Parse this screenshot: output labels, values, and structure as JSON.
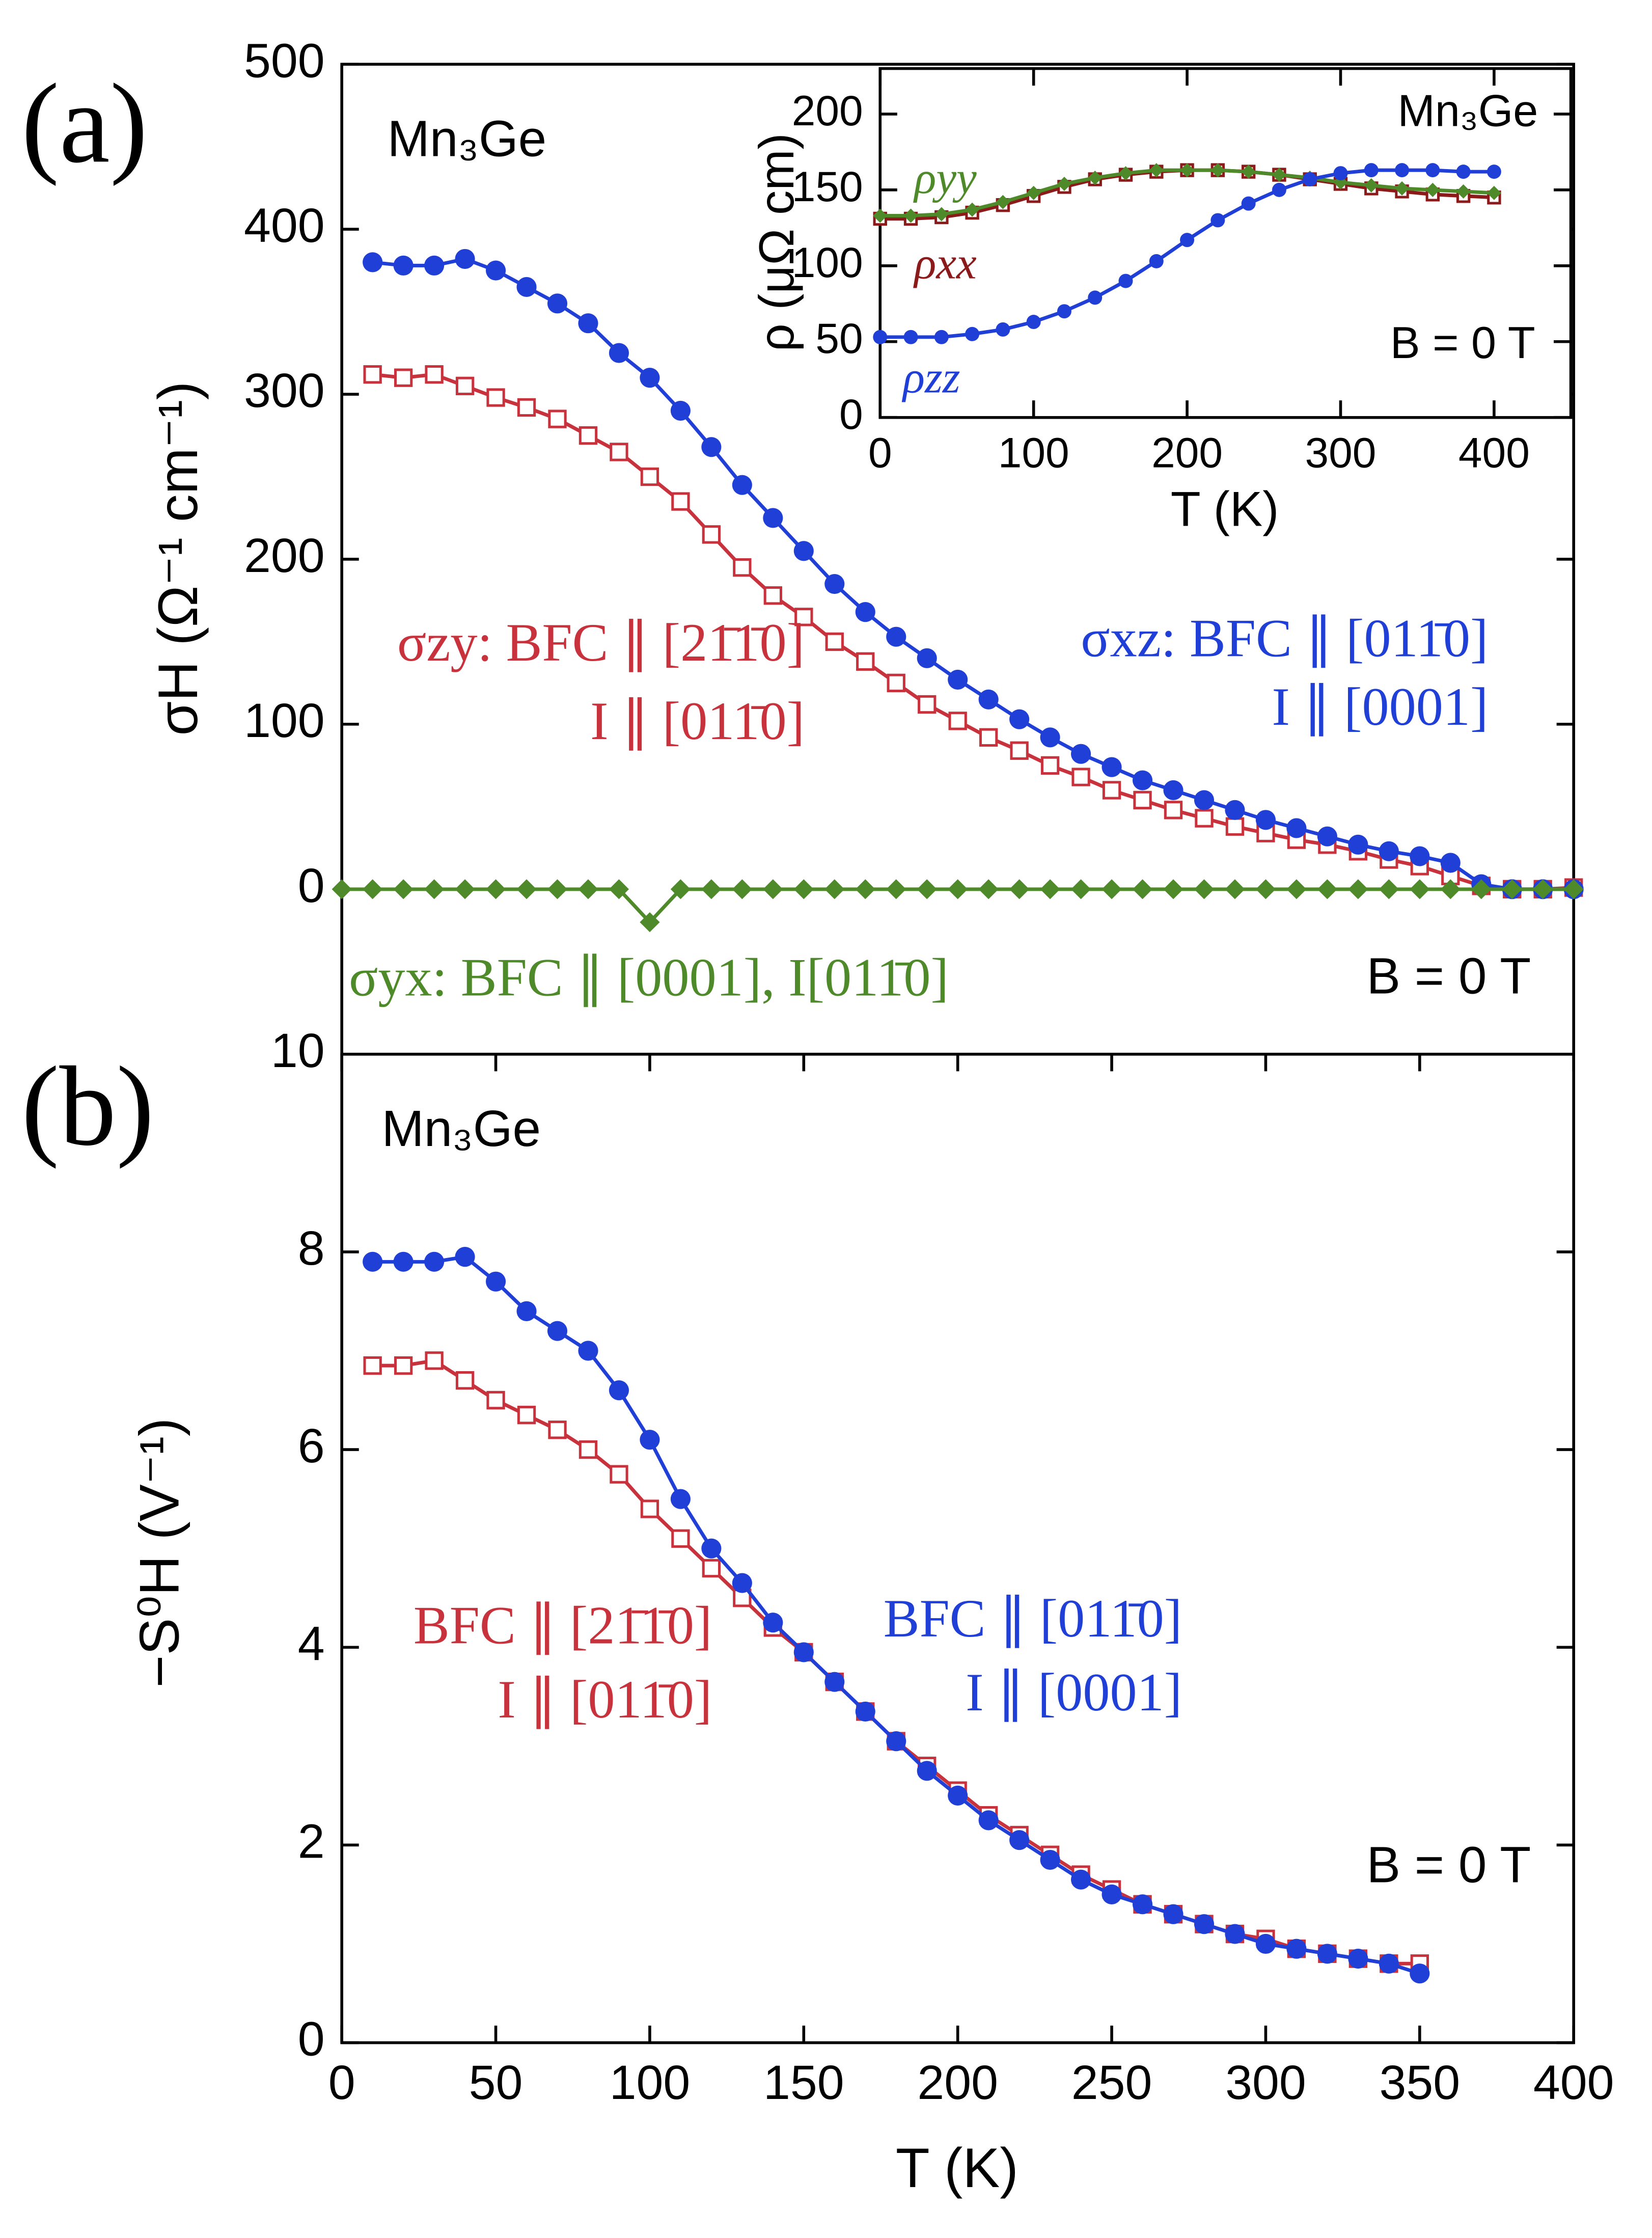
{
  "chart_data": [
    {
      "type": "line",
      "panel_label": "(a)",
      "y_label": "σH (Ω⁻¹ cm⁻¹)",
      "xlim": [
        0,
        400
      ],
      "ylim": [
        -100,
        500
      ],
      "yticks": [
        0,
        100,
        200,
        300,
        400,
        500
      ],
      "annotations": [
        {
          "text": "Mn₃Ge",
          "color": "#000000"
        },
        {
          "text": "σzy: BFC ∥ [21̄1̄0]",
          "color": "#c8323c"
        },
        {
          "text": "I ∥ [011̄0]",
          "color": "#c8323c"
        },
        {
          "text": "σxz: BFC ∥ [011̄0]",
          "color": "#1f3fd6"
        },
        {
          "text": "I ∥ [0001]",
          "color": "#1f3fd6"
        },
        {
          "text": "σyx: BFC ∥ [0001], I[011̄0]",
          "color": "#4e8a2a"
        },
        {
          "text": "B = 0 T",
          "color": "#000000"
        }
      ],
      "series": [
        {
          "color": "#c8323c",
          "marker": "square",
          "x": [
            10,
            20,
            30,
            40,
            50,
            60,
            70,
            80,
            90,
            100,
            110,
            120,
            130,
            140,
            150,
            160,
            170,
            180,
            190,
            200,
            210,
            220,
            230,
            240,
            250,
            260,
            270,
            280,
            290,
            300,
            310,
            320,
            330,
            340,
            350,
            360,
            370,
            380,
            390,
            400
          ],
          "values": [
            312,
            310,
            312,
            305,
            298,
            292,
            285,
            275,
            265,
            250,
            235,
            215,
            195,
            178,
            165,
            150,
            138,
            125,
            112,
            102,
            92,
            84,
            75,
            68,
            60,
            54,
            48,
            43,
            38,
            34,
            30,
            27,
            23,
            18,
            14,
            8,
            2,
            0,
            0,
            1
          ]
        },
        {
          "color": "#1f3fd6",
          "marker": "circle",
          "x": [
            10,
            20,
            30,
            40,
            50,
            60,
            70,
            80,
            90,
            100,
            110,
            120,
            130,
            140,
            150,
            160,
            170,
            180,
            190,
            200,
            210,
            220,
            230,
            240,
            250,
            260,
            270,
            280,
            290,
            300,
            310,
            320,
            330,
            340,
            350,
            360,
            370,
            380,
            390,
            400
          ],
          "values": [
            380,
            378,
            378,
            382,
            375,
            365,
            355,
            343,
            325,
            310,
            290,
            268,
            245,
            225,
            205,
            185,
            168,
            153,
            140,
            127,
            115,
            103,
            92,
            82,
            74,
            66,
            60,
            54,
            48,
            42,
            37,
            32,
            27,
            23,
            20,
            16,
            3,
            0,
            0,
            0
          ]
        },
        {
          "color": "#4e8a2a",
          "marker": "diamond",
          "x": [
            0,
            10,
            20,
            30,
            40,
            50,
            60,
            70,
            80,
            90,
            100,
            110,
            120,
            130,
            140,
            150,
            160,
            170,
            180,
            190,
            200,
            210,
            220,
            230,
            240,
            250,
            260,
            270,
            280,
            290,
            300,
            310,
            320,
            330,
            340,
            350,
            360,
            370,
            380,
            390,
            400
          ],
          "values": [
            0,
            0,
            0,
            0,
            0,
            0,
            0,
            0,
            0,
            0,
            -20,
            0,
            0,
            0,
            0,
            0,
            0,
            0,
            0,
            0,
            0,
            0,
            0,
            0,
            0,
            0,
            0,
            0,
            0,
            0,
            0,
            0,
            0,
            0,
            0,
            0,
            0,
            0,
            0,
            0,
            0
          ]
        }
      ]
    },
    {
      "type": "line",
      "x_label": "T (K)",
      "y_label": "ρ (μΩ cm)",
      "xlim": [
        0,
        450
      ],
      "ylim": [
        0,
        230
      ],
      "xticks": [
        0,
        100,
        200,
        300,
        400
      ],
      "yticks": [
        0,
        50,
        100,
        150,
        200
      ],
      "annotations": [
        {
          "text": "Mn₃Ge",
          "color": "#000000"
        },
        {
          "text": "B = 0 T",
          "color": "#000000"
        }
      ],
      "series": [
        {
          "name": "ρxx",
          "color": "#8b1a1a",
          "marker": "square",
          "x": [
            0,
            20,
            40,
            60,
            80,
            100,
            120,
            140,
            160,
            180,
            200,
            220,
            240,
            260,
            280,
            300,
            320,
            340,
            360,
            380,
            400
          ],
          "values": [
            131,
            131,
            132,
            135,
            140,
            146,
            152,
            157,
            160,
            162,
            163,
            163,
            162,
            160,
            157,
            154,
            151,
            149,
            147,
            146,
            145
          ]
        },
        {
          "name": "ρyy",
          "color": "#4e8a2a",
          "marker": "diamond",
          "x": [
            0,
            20,
            40,
            60,
            80,
            100,
            120,
            140,
            160,
            180,
            200,
            220,
            240,
            260,
            280,
            300,
            320,
            340,
            360,
            380,
            400
          ],
          "values": [
            133,
            133,
            134,
            137,
            142,
            148,
            154,
            158,
            161,
            163,
            163,
            163,
            162,
            160,
            158,
            155,
            153,
            151,
            150,
            149,
            148
          ]
        },
        {
          "name": "ρzz",
          "color": "#1f3fd6",
          "marker": "circle",
          "x": [
            0,
            20,
            40,
            60,
            80,
            100,
            120,
            140,
            160,
            180,
            200,
            220,
            240,
            260,
            280,
            300,
            320,
            340,
            360,
            380,
            400
          ],
          "values": [
            53,
            53,
            53,
            55,
            58,
            63,
            70,
            79,
            90,
            103,
            117,
            130,
            141,
            150,
            157,
            161,
            163,
            163,
            163,
            162,
            162
          ]
        }
      ]
    },
    {
      "type": "line",
      "panel_label": "(b)",
      "x_label": "T (K)",
      "y_label": "−S⁰H (V⁻¹)",
      "xlim": [
        0,
        400
      ],
      "ylim": [
        0,
        10
      ],
      "xticks": [
        0,
        50,
        100,
        150,
        200,
        250,
        300,
        350,
        400
      ],
      "yticks": [
        0,
        2,
        4,
        6,
        8,
        10
      ],
      "annotations": [
        {
          "text": "Mn₃Ge",
          "color": "#000000"
        },
        {
          "text": "BFC ∥ [21̄1̄0]",
          "color": "#c8323c"
        },
        {
          "text": "I ∥ [011̄0]",
          "color": "#c8323c"
        },
        {
          "text": "BFC ∥ [011̄0]",
          "color": "#1f3fd6"
        },
        {
          "text": "I ∥ [0001]",
          "color": "#1f3fd6"
        },
        {
          "text": "B = 0 T",
          "color": "#000000"
        }
      ],
      "series": [
        {
          "color": "#c8323c",
          "marker": "square",
          "x": [
            10,
            20,
            30,
            40,
            50,
            60,
            70,
            80,
            90,
            100,
            110,
            120,
            130,
            140,
            150,
            160,
            170,
            180,
            190,
            200,
            210,
            220,
            230,
            240,
            250,
            260,
            270,
            280,
            290,
            300,
            310,
            320,
            330,
            340,
            350
          ],
          "values": [
            6.85,
            6.85,
            6.9,
            6.7,
            6.5,
            6.35,
            6.2,
            6.0,
            5.75,
            5.4,
            5.1,
            4.8,
            4.5,
            4.2,
            3.95,
            3.65,
            3.35,
            3.05,
            2.8,
            2.55,
            2.3,
            2.1,
            1.9,
            1.7,
            1.55,
            1.4,
            1.3,
            1.2,
            1.1,
            1.05,
            0.95,
            0.9,
            0.85,
            0.8,
            0.8
          ]
        },
        {
          "color": "#1f3fd6",
          "marker": "circle",
          "x": [
            10,
            20,
            30,
            40,
            50,
            60,
            70,
            80,
            90,
            100,
            110,
            120,
            130,
            140,
            150,
            160,
            170,
            180,
            190,
            200,
            210,
            220,
            230,
            240,
            250,
            260,
            270,
            280,
            290,
            300,
            310,
            320,
            330,
            340,
            350
          ],
          "values": [
            7.9,
            7.9,
            7.9,
            7.95,
            7.7,
            7.4,
            7.2,
            7.0,
            6.6,
            6.1,
            5.5,
            5.0,
            4.65,
            4.25,
            3.95,
            3.65,
            3.35,
            3.05,
            2.75,
            2.5,
            2.25,
            2.05,
            1.85,
            1.65,
            1.5,
            1.4,
            1.3,
            1.2,
            1.1,
            1.0,
            0.95,
            0.9,
            0.85,
            0.8,
            0.7
          ]
        }
      ]
    }
  ]
}
